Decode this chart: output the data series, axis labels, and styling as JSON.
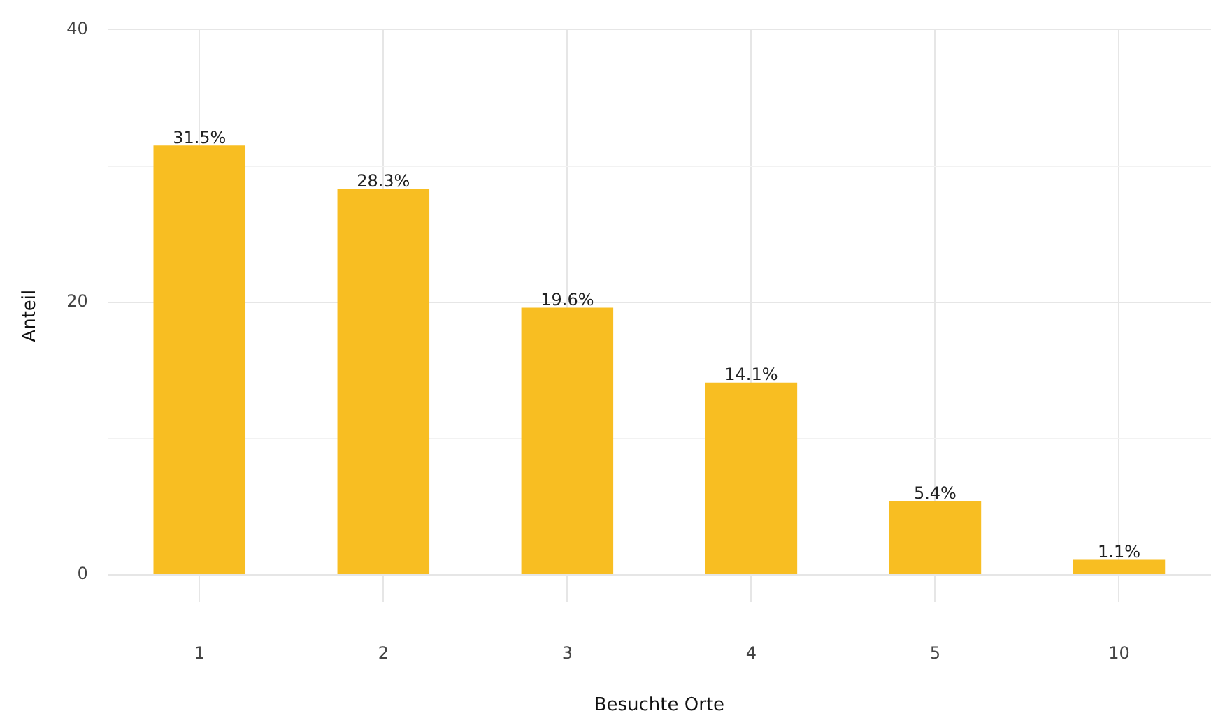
{
  "chart_data": {
    "type": "bar",
    "xlabel": "Besuchte Orte",
    "ylabel": "Anteil",
    "categories": [
      "1",
      "2",
      "3",
      "4",
      "5",
      "10"
    ],
    "values": [
      31.5,
      28.3,
      19.6,
      14.1,
      5.4,
      1.1
    ],
    "value_labels": [
      "31.5%",
      "28.3%",
      "19.6%",
      "14.1%",
      "5.4%",
      "1.1%"
    ],
    "color": "#f8be22",
    "ylim": [
      -2,
      40
    ],
    "yticks": [
      0,
      {
        "value": 10,
        "label": null
      },
      20,
      {
        "value": 30,
        "label": null
      },
      40
    ],
    "grid": true
  }
}
